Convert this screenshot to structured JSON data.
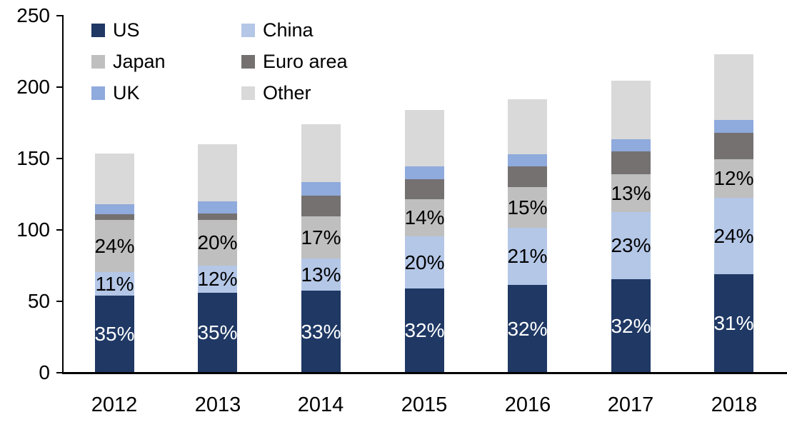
{
  "chart_data": {
    "type": "bar",
    "variant": "stacked",
    "title": "",
    "xlabel": "",
    "ylabel": "",
    "ylim": [
      0,
      250
    ],
    "y_ticks": [
      0,
      50,
      100,
      150,
      200,
      250
    ],
    "grid": false,
    "legend_position": "top-left",
    "categories": [
      "2012",
      "2013",
      "2014",
      "2015",
      "2016",
      "2017",
      "2018"
    ],
    "series": [
      {
        "name": "US",
        "color": "#1F3864",
        "values": [
          54,
          56,
          57.5,
          59,
          61.5,
          65.5,
          69
        ],
        "labels": [
          "35%",
          "35%",
          "33%",
          "32%",
          "32%",
          "32%",
          "31%"
        ],
        "label_color": "#FFFFFF"
      },
      {
        "name": "China",
        "color": "#B4C7E7",
        "values": [
          16.5,
          19.2,
          22.5,
          36.5,
          40,
          47,
          53.5
        ],
        "labels": [
          "11%",
          "12%",
          "13%",
          "20%",
          "21%",
          "23%",
          "24%"
        ],
        "label_color": "#000000"
      },
      {
        "name": "Japan",
        "color": "#BFBFBF",
        "values": [
          36.5,
          32,
          29.5,
          26,
          28.5,
          26.5,
          27
        ],
        "labels": [
          "24%",
          "20%",
          "17%",
          "14%",
          "15%",
          "13%",
          "12%"
        ],
        "label_color": "#000000"
      },
      {
        "name": "Euro area",
        "color": "#757171",
        "values": [
          3.8,
          4.3,
          14.7,
          13.8,
          14.5,
          15.8,
          18.7
        ],
        "labels": null,
        "label_color": "#000000"
      },
      {
        "name": "UK",
        "color": "#8FAADC",
        "values": [
          7.2,
          8.4,
          9.3,
          9.2,
          8.5,
          8.7,
          9
        ],
        "labels": null,
        "label_color": "#000000"
      },
      {
        "name": "Other",
        "color": "#D9D9D9",
        "values": [
          35.5,
          40.1,
          40.5,
          39.5,
          38.5,
          41,
          45.8
        ],
        "labels": null,
        "label_color": "#000000"
      }
    ],
    "totals": [
      153.5,
      160,
      174,
      184,
      191.5,
      204.5,
      223
    ]
  }
}
